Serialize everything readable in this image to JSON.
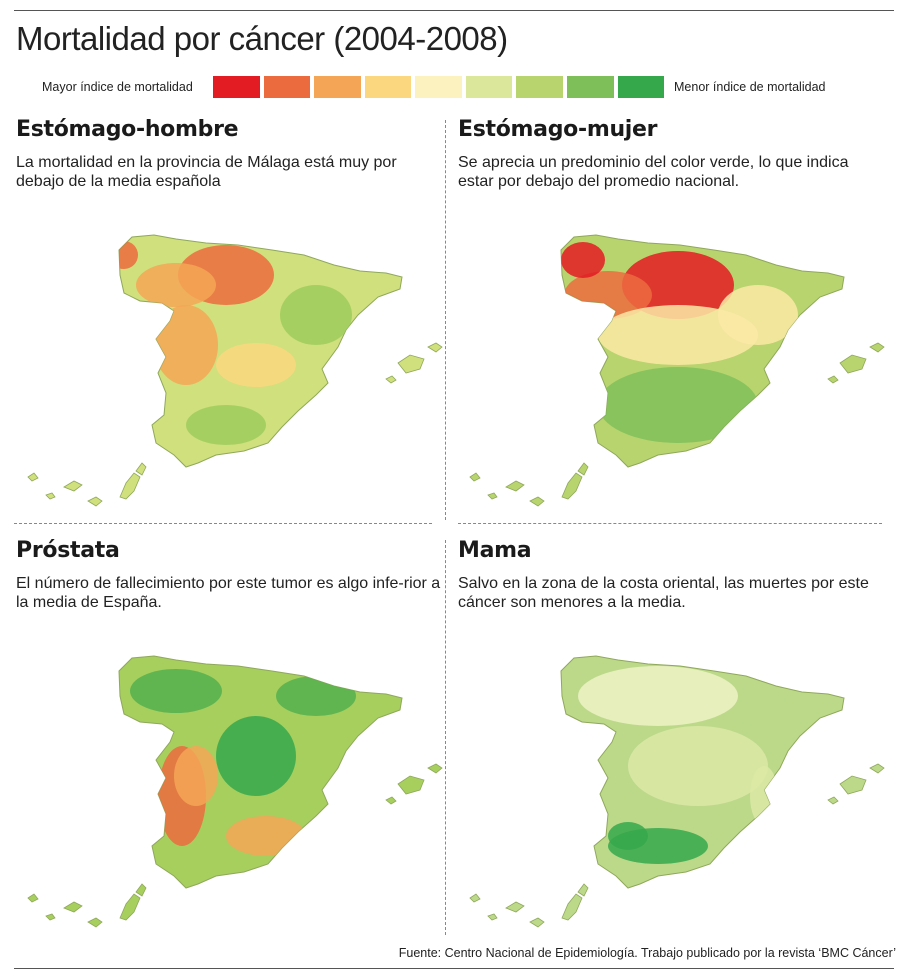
{
  "title": "Mortalidad por cáncer (2004-2008)",
  "legend": {
    "left_label": "Mayor índice de mortalidad",
    "right_label": "Menor índice de mortalidad",
    "colors": [
      "#e31b23",
      "#ec6b3e",
      "#f4a656",
      "#fbd780",
      "#fbf2c0",
      "#dbe79a",
      "#b8d46e",
      "#7fbf5a",
      "#36a84c"
    ]
  },
  "panels": [
    {
      "heading": "Estómago-hombre",
      "text": "La mortalidad en la provincia de Málaga está muy por debajo de la media española",
      "palette": {
        "base": "#cfe07c",
        "north": "#f4a656",
        "hot": "#ec6b3e",
        "warm": "#fbd780",
        "green": "#9fcb5e"
      }
    },
    {
      "heading": "Estómago-mujer",
      "text": "Se aprecia un predominio del color verde, lo que indica estar por debajo del promedio nacional.",
      "palette": {
        "base": "#b8d46e",
        "north": "#ec6b3e",
        "hot": "#e31b23",
        "warm": "#fbe9a6",
        "green": "#7fbf5a"
      }
    },
    {
      "heading": "Próstata",
      "text": "El número de fallecimiento por este tumor es algo infe-rior a la media de España.",
      "palette": {
        "base": "#a6cf5e",
        "north": "#54b04e",
        "hot": "#ec6b3e",
        "warm": "#f4a656",
        "green": "#36a84c"
      }
    },
    {
      "heading": "Mama",
      "text": "Salvo en la zona de la costa oriental, las muertes por este cáncer son menores a la media.",
      "palette": {
        "base": "#bcd98a",
        "north": "#eef2c6",
        "hot": "#f4a656",
        "warm": "#dce9a6",
        "green": "#36a84c"
      }
    }
  ],
  "source": "Fuente: Centro Nacional de Epidemiología. Trabajo publicado por la revista ‘BMC Cáncer’"
}
